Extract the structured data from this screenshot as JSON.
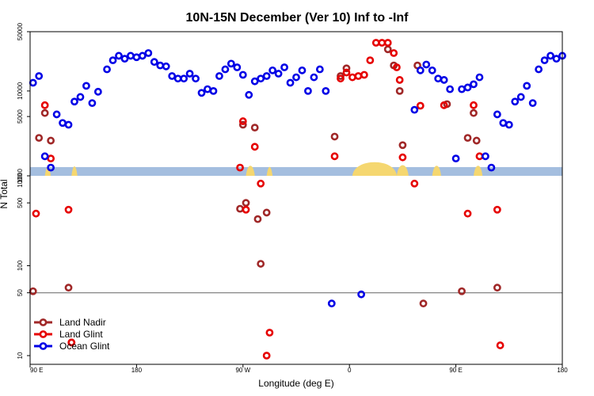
{
  "chart_data": {
    "type": "scatter",
    "title": "10N-15N December (Ver 10)   Inf to -Inf",
    "xlabel": "Longitude (deg E)",
    "ylabel": "N Total",
    "xlim": [
      90,
      270
    ],
    "x_ticks": [
      {
        "value": 90,
        "label": "90 E"
      },
      {
        "value": 126,
        "label": "180"
      },
      {
        "value": 162,
        "label": "90 W"
      },
      {
        "value": 198,
        "label": "0"
      },
      {
        "value": 234,
        "label": "90 E"
      },
      {
        "value": 270,
        "label": "180"
      }
    ],
    "upper_panel": {
      "scale": "log",
      "ylim": [
        1000,
        50000
      ],
      "y_ticks": [
        {
          "value": 1000,
          "label": "1000"
        },
        {
          "value": 5000,
          "label": "5000"
        },
        {
          "value": 10000,
          "label": "10000"
        },
        {
          "value": 50000,
          "label": "50000"
        }
      ]
    },
    "lower_panel": {
      "scale": "log",
      "ylim": [
        8,
        1000
      ],
      "y_ticks": [
        {
          "value": 10,
          "label": "10"
        },
        {
          "value": 50,
          "label": "50"
        },
        {
          "value": 100,
          "label": "100"
        },
        {
          "value": 500,
          "label": "500"
        },
        {
          "value": 1000,
          "label": "1000"
        }
      ],
      "reference_line": 50
    },
    "land_band": {
      "color": "#a4bedf",
      "land_color": "#f5d770"
    },
    "series": [
      {
        "name": "Land Nadir",
        "color": "#a02828",
        "points": [
          [
            91,
            52
          ],
          [
            93,
            2800
          ],
          [
            95,
            5500
          ],
          [
            97,
            2600
          ],
          [
            103,
            57
          ],
          [
            104,
            14
          ],
          [
            162,
            4000
          ],
          [
            163,
            500
          ],
          [
            161,
            430
          ],
          [
            166,
            3700
          ],
          [
            167,
            330
          ],
          [
            168,
            105
          ],
          [
            170,
            390
          ],
          [
            193,
            2900
          ],
          [
            195,
            15000
          ],
          [
            197,
            18500
          ],
          [
            211,
            31000
          ],
          [
            213,
            20000
          ],
          [
            215,
            10000
          ],
          [
            216,
            2300
          ],
          [
            221,
            20000
          ],
          [
            223,
            38
          ],
          [
            231,
            7000
          ],
          [
            236,
            52
          ],
          [
            238,
            2800
          ],
          [
            240,
            5500
          ],
          [
            241,
            2600
          ],
          [
            248,
            57
          ]
        ]
      },
      {
        "name": "Land Glint",
        "color": "#e60000",
        "points": [
          [
            92,
            380
          ],
          [
            95,
            6800
          ],
          [
            97,
            1600
          ],
          [
            103,
            420
          ],
          [
            104,
            14
          ],
          [
            161,
            1250
          ],
          [
            162,
            4400
          ],
          [
            163,
            420
          ],
          [
            166,
            2200
          ],
          [
            168,
            820
          ],
          [
            171,
            18
          ],
          [
            170,
            10
          ],
          [
            193,
            1700
          ],
          [
            195,
            14000
          ],
          [
            197,
            16500
          ],
          [
            199,
            14500
          ],
          [
            201,
            15000
          ],
          [
            203,
            15500
          ],
          [
            205,
            23000
          ],
          [
            207,
            37000
          ],
          [
            209,
            37000
          ],
          [
            211,
            37000
          ],
          [
            213,
            28000
          ],
          [
            214,
            19000
          ],
          [
            215,
            13500
          ],
          [
            216,
            1650
          ],
          [
            220,
            820
          ],
          [
            222,
            6700
          ],
          [
            230,
            6800
          ],
          [
            238,
            380
          ],
          [
            240,
            6800
          ],
          [
            242,
            1700
          ],
          [
            248,
            420
          ],
          [
            249,
            13
          ]
        ]
      },
      {
        "name": "Ocean Glint",
        "color": "#0000e6",
        "points": [
          [
            91,
            12500
          ],
          [
            93,
            15000
          ],
          [
            95,
            1700
          ],
          [
            97,
            1250
          ],
          [
            99,
            5300
          ],
          [
            101,
            4200
          ],
          [
            103,
            4000
          ],
          [
            105,
            7500
          ],
          [
            107,
            8500
          ],
          [
            109,
            11500
          ],
          [
            111,
            7200
          ],
          [
            113,
            9800
          ],
          [
            116,
            18000
          ],
          [
            118,
            23000
          ],
          [
            120,
            26000
          ],
          [
            122,
            24000
          ],
          [
            124,
            26000
          ],
          [
            126,
            25000
          ],
          [
            128,
            26000
          ],
          [
            130,
            28000
          ],
          [
            132,
            22000
          ],
          [
            134,
            20000
          ],
          [
            136,
            19500
          ],
          [
            138,
            15000
          ],
          [
            140,
            14000
          ],
          [
            142,
            14000
          ],
          [
            144,
            16000
          ],
          [
            146,
            14000
          ],
          [
            148,
            9500
          ],
          [
            150,
            10500
          ],
          [
            152,
            10000
          ],
          [
            154,
            15000
          ],
          [
            156,
            18000
          ],
          [
            158,
            21000
          ],
          [
            160,
            19000
          ],
          [
            162,
            15500
          ],
          [
            164,
            9000
          ],
          [
            166,
            13000
          ],
          [
            168,
            14000
          ],
          [
            170,
            15000
          ],
          [
            172,
            17500
          ],
          [
            174,
            16000
          ],
          [
            176,
            19000
          ],
          [
            178,
            12500
          ],
          [
            180,
            14500
          ],
          [
            182,
            17500
          ],
          [
            184,
            10000
          ],
          [
            186,
            14500
          ],
          [
            188,
            18000
          ],
          [
            190,
            10000
          ],
          [
            192,
            38
          ],
          [
            202,
            48
          ],
          [
            220,
            6000
          ],
          [
            222,
            17500
          ],
          [
            224,
            20500
          ],
          [
            226,
            17500
          ],
          [
            228,
            14000
          ],
          [
            230,
            13500
          ],
          [
            232,
            10500
          ],
          [
            234,
            1600
          ],
          [
            236,
            10500
          ],
          [
            238,
            11000
          ],
          [
            240,
            12000
          ],
          [
            242,
            14500
          ],
          [
            244,
            1700
          ],
          [
            246,
            1250
          ],
          [
            248,
            5300
          ],
          [
            250,
            4200
          ],
          [
            252,
            4000
          ],
          [
            254,
            7500
          ],
          [
            256,
            8500
          ],
          [
            258,
            11500
          ],
          [
            260,
            7200
          ],
          [
            262,
            18000
          ],
          [
            264,
            23000
          ],
          [
            266,
            26000
          ],
          [
            268,
            24000
          ],
          [
            270,
            26000
          ]
        ]
      }
    ],
    "legend": {
      "position": "bottom-left",
      "entries": [
        "Land Nadir",
        "Land Glint",
        "Ocean Glint"
      ]
    }
  }
}
